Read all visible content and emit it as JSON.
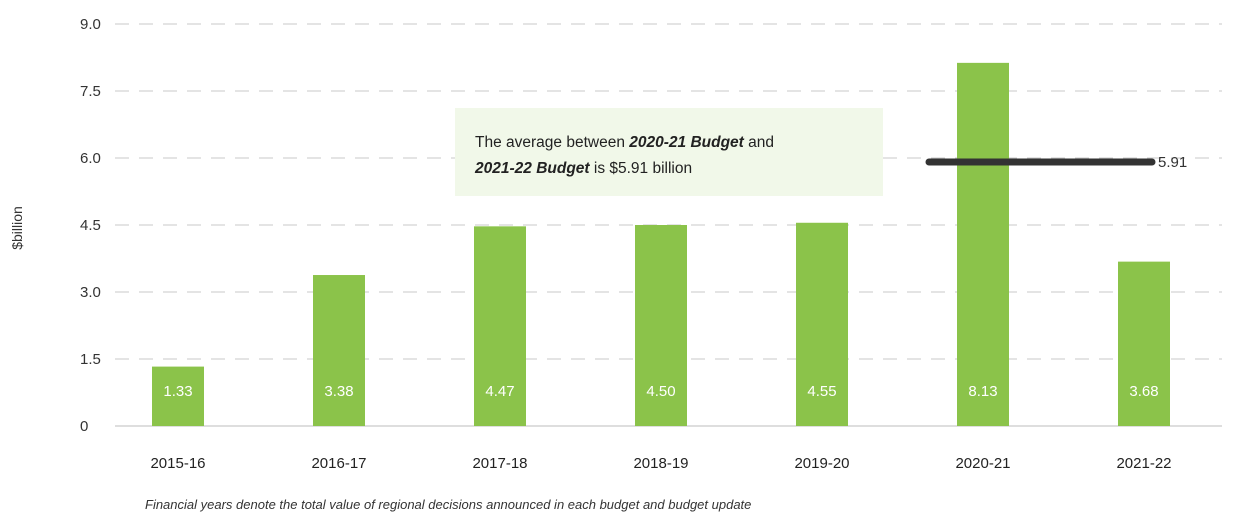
{
  "chart_data": {
    "type": "bar",
    "categories": [
      "2015-16",
      "2016-17",
      "2017-18",
      "2018-19",
      "2019-20",
      "2020-21",
      "2021-22"
    ],
    "values": [
      1.33,
      3.38,
      4.47,
      4.5,
      4.55,
      8.13,
      3.68
    ],
    "value_labels": [
      "1.33",
      "3.38",
      "4.47",
      "4.50",
      "4.55",
      "8.13",
      "3.68"
    ],
    "ylabel": "$billion",
    "ylim": [
      0,
      9.0
    ],
    "yticks": [
      0,
      1.5,
      3.0,
      4.5,
      6.0,
      7.5,
      9.0
    ],
    "ytick_labels": [
      "0",
      "1.5",
      "3.0",
      "4.5",
      "6.0",
      "7.5",
      "9.0"
    ],
    "grid": true,
    "bar_color": "#8bc34a",
    "reference_line": {
      "value": 5.91,
      "label": "5.91",
      "from_category": "2020-21",
      "to_category": "2021-22",
      "color": "#333333"
    },
    "annotation": {
      "part1": "The average between ",
      "italic1": "2020-21 Budget",
      "part2": " and ",
      "italic2": "2021-22 Budget",
      "part3": " is $5.91 billion",
      "background": "#f1f8e9"
    },
    "footnote": "Financial years denote the total value of regional decisions announced in each budget and budget update"
  }
}
